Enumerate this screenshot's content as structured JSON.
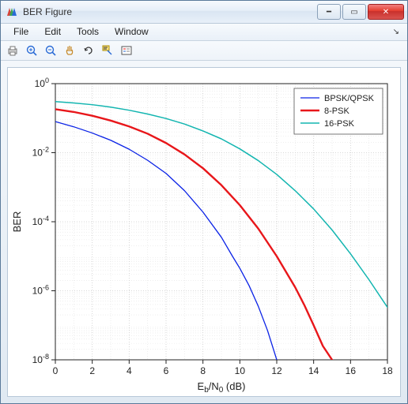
{
  "window": {
    "title": "BER Figure",
    "icon_colors": {
      "red": "#d7443a",
      "green": "#3aa655",
      "blue": "#2a6bd6"
    }
  },
  "window_controls": {
    "minimize_glyph": "━",
    "maximize_glyph": "▭",
    "close_glyph": "✕"
  },
  "menu": {
    "file": "File",
    "edit": "Edit",
    "tools": "Tools",
    "window": "Window",
    "dock_glyph": "↘"
  },
  "toolbar": {
    "icons": [
      "print",
      "zoom-in",
      "zoom-out",
      "pan",
      "rotate",
      "data-cursor",
      "insert-legend"
    ]
  },
  "chart": {
    "type": "line-semilogY",
    "background_color": "#ffffff",
    "grid_color": "#cccccc",
    "grid_minor_color": "#e3e3e3",
    "axis_color": "#222222",
    "tick_fontsize": 12,
    "label_fontsize": 13,
    "xlabel_html": "E<tspan baseline-shift='-3' font-size='10'>b</tspan>/N<tspan baseline-shift='-3' font-size='10'>0</tspan> (dB)",
    "ylabel": "BER",
    "xlim": [
      0,
      18
    ],
    "xtick_step": 2,
    "xticks": [
      0,
      2,
      4,
      6,
      8,
      10,
      12,
      14,
      16,
      18
    ],
    "ylim_log": [
      -8,
      0
    ],
    "yticks_exp": [
      0,
      -2,
      -4,
      -6,
      -8
    ],
    "legend": {
      "position": "top-right",
      "border_color": "#555555",
      "bg_color": "#ffffff"
    },
    "series": [
      {
        "id": "bpsk",
        "label": "BPSK/QPSK",
        "color": "#0a22e6",
        "line_width": 1.3,
        "points": [
          [
            0,
            -1.1
          ],
          [
            1,
            -1.25
          ],
          [
            2,
            -1.43
          ],
          [
            3,
            -1.64
          ],
          [
            4,
            -1.9
          ],
          [
            5,
            -2.22
          ],
          [
            6,
            -2.6
          ],
          [
            7,
            -3.1
          ],
          [
            8,
            -3.72
          ],
          [
            9,
            -4.45
          ],
          [
            9.6,
            -5.0
          ],
          [
            10,
            -5.35
          ],
          [
            10.5,
            -5.85
          ],
          [
            11,
            -6.45
          ],
          [
            11.5,
            -7.15
          ],
          [
            12,
            -8.0
          ]
        ]
      },
      {
        "id": "psk8",
        "label": "8-PSK",
        "color": "#e8161a",
        "line_width": 2.4,
        "points": [
          [
            0,
            -0.74
          ],
          [
            1,
            -0.82
          ],
          [
            2,
            -0.93
          ],
          [
            3,
            -1.07
          ],
          [
            4,
            -1.24
          ],
          [
            5,
            -1.45
          ],
          [
            6,
            -1.72
          ],
          [
            7,
            -2.05
          ],
          [
            8,
            -2.45
          ],
          [
            9,
            -2.94
          ],
          [
            10,
            -3.52
          ],
          [
            11,
            -4.2
          ],
          [
            12,
            -5.0
          ],
          [
            13,
            -5.9
          ],
          [
            13.5,
            -6.42
          ],
          [
            14,
            -7.0
          ],
          [
            14.5,
            -7.6
          ],
          [
            15,
            -8.0
          ]
        ]
      },
      {
        "id": "psk16",
        "label": "16-PSK",
        "color": "#12b5b0",
        "line_width": 1.5,
        "points": [
          [
            0,
            -0.52
          ],
          [
            1,
            -0.56
          ],
          [
            2,
            -0.61
          ],
          [
            3,
            -0.68
          ],
          [
            4,
            -0.77
          ],
          [
            5,
            -0.88
          ],
          [
            6,
            -1.01
          ],
          [
            7,
            -1.17
          ],
          [
            8,
            -1.37
          ],
          [
            9,
            -1.6
          ],
          [
            10,
            -1.89
          ],
          [
            11,
            -2.23
          ],
          [
            12,
            -2.63
          ],
          [
            13,
            -3.1
          ],
          [
            14,
            -3.63
          ],
          [
            15,
            -4.24
          ],
          [
            16,
            -4.93
          ],
          [
            17,
            -5.68
          ],
          [
            18,
            -6.48
          ]
        ]
      }
    ]
  }
}
